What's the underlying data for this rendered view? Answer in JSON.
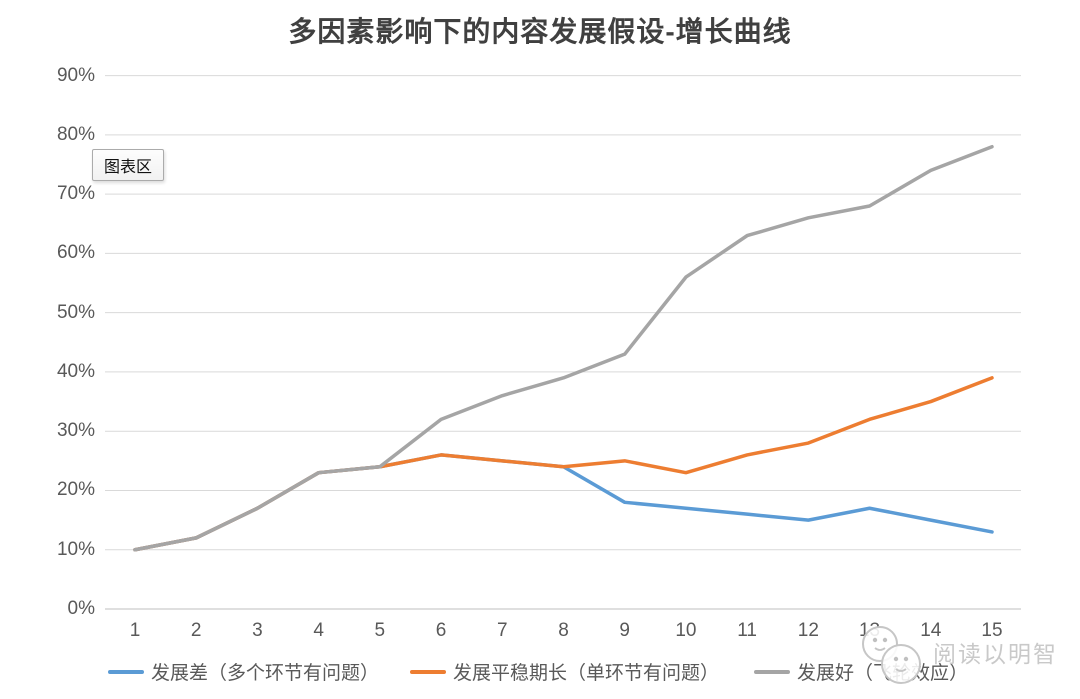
{
  "title": "多因素影响下的内容发展假设-增长曲线",
  "tooltip": {
    "label": "图表区"
  },
  "watermark": {
    "text": "阅读以明智",
    "logo": "two-smiley-circles"
  },
  "colors": {
    "series_blue": "#5B9BD5",
    "series_orange": "#ED7D31",
    "series_gray": "#A5A5A5",
    "gridline": "#D9D9D9",
    "axis_line": "#BFBFBF",
    "axis_text": "#595959",
    "title_text": "#404040",
    "watermark_text": "#C9C9C9"
  },
  "chart_data": {
    "type": "line",
    "title": "多因素影响下的内容发展假设-增长曲线",
    "x": [
      1,
      2,
      3,
      4,
      5,
      6,
      7,
      8,
      9,
      10,
      11,
      12,
      13,
      14,
      15
    ],
    "y_ticks": [
      "0%",
      "10%",
      "20%",
      "30%",
      "40%",
      "50%",
      "60%",
      "70%",
      "80%",
      "90%"
    ],
    "ylim": [
      0,
      90
    ],
    "xlabel": "",
    "ylabel": "",
    "grid": true,
    "legend_position": "bottom",
    "series": [
      {
        "name": "发展差（多个环节有问题）",
        "color": "#5B9BD5",
        "values": [
          10,
          12,
          17,
          23,
          24,
          26,
          25,
          24,
          18,
          17,
          16,
          15,
          17,
          15,
          13
        ]
      },
      {
        "name": "发展平稳期长（单环节有问题）",
        "color": "#ED7D31",
        "values": [
          10,
          12,
          17,
          23,
          24,
          26,
          25,
          24,
          25,
          23,
          26,
          28,
          32,
          35,
          39
        ]
      },
      {
        "name": "发展好（飞轮效应）",
        "color": "#A5A5A5",
        "values": [
          10,
          12,
          17,
          23,
          24,
          32,
          36,
          39,
          43,
          56,
          63,
          66,
          68,
          74,
          78
        ]
      }
    ]
  }
}
